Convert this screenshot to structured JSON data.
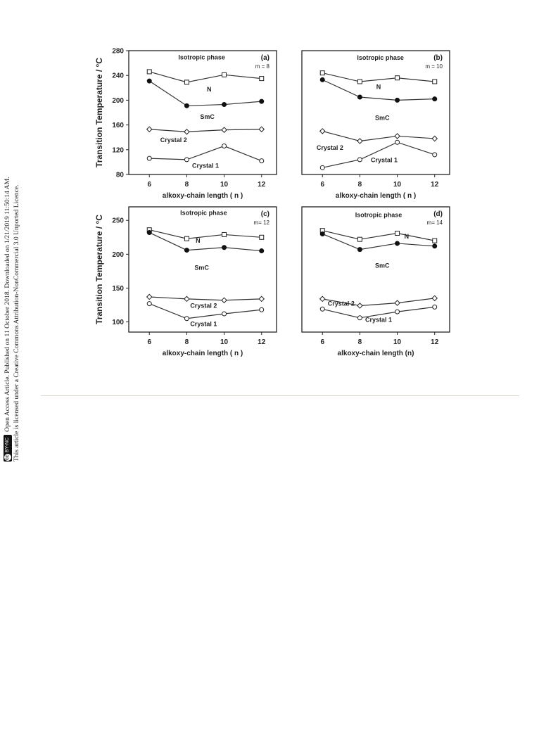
{
  "notice": {
    "line1": "Open Access Article. Published on 11 October 2018. Downloaded on 1/21/2019 11:50:14 AM.",
    "line2": "This article is licensed under a Creative Commons Attribution-NonCommercial 3.0 Unported Licence.",
    "badge_cc": "cc",
    "badge_text": "BY-NC"
  },
  "chart_data": [
    {
      "type": "line",
      "panel_label": "(a)",
      "m_label": "m = 8",
      "ylabel": "Transition Temperature / °C",
      "xlabel": "alkoxy-chain length ( n )",
      "categories": [
        "6",
        "8",
        "10",
        "12"
      ],
      "yticks": [
        "80",
        "120",
        "160",
        "200",
        "240",
        "280"
      ],
      "ylim": [
        80,
        280
      ],
      "series": [
        {
          "values": [
            246,
            229,
            241,
            235
          ],
          "marker": "square"
        },
        {
          "values": [
            231,
            191,
            193,
            198
          ],
          "marker": "filled-circle"
        },
        {
          "values": [
            153,
            149,
            152,
            153
          ],
          "marker": "diamond"
        },
        {
          "values": [
            106,
            104,
            126,
            102
          ],
          "marker": "circle"
        }
      ],
      "annotations": [
        {
          "text": "Isotropic phase",
          "x": 8.8,
          "y": 266
        },
        {
          "text": "N",
          "x": 9.2,
          "y": 214
        },
        {
          "text": "SmC",
          "x": 9.1,
          "y": 170
        },
        {
          "text": "Crystal 2",
          "x": 7.3,
          "y": 132
        },
        {
          "text": "Crystal 1",
          "x": 9.0,
          "y": 91
        }
      ]
    },
    {
      "type": "line",
      "panel_label": "(b)",
      "m_label": "m = 10",
      "ylabel": "",
      "xlabel": "alkoxy-chain length ( n )",
      "categories": [
        "6",
        "8",
        "10",
        "12"
      ],
      "yticks": [],
      "ylim": [
        80,
        280
      ],
      "series": [
        {
          "values": [
            244,
            230,
            236,
            230
          ],
          "marker": "square"
        },
        {
          "values": [
            233,
            205,
            200,
            202
          ],
          "marker": "filled-circle"
        },
        {
          "values": [
            150,
            134,
            142,
            138
          ],
          "marker": "diamond"
        },
        {
          "values": [
            91,
            104,
            132,
            112
          ],
          "marker": "circle"
        }
      ],
      "annotations": [
        {
          "text": "Isotropic phase",
          "x": 9.1,
          "y": 265
        },
        {
          "text": "N",
          "x": 9.0,
          "y": 218
        },
        {
          "text": "SmC",
          "x": 9.2,
          "y": 168
        },
        {
          "text": "Crystal 2",
          "x": 6.4,
          "y": 120
        },
        {
          "text": "Crystal 1",
          "x": 9.3,
          "y": 100
        }
      ]
    },
    {
      "type": "line",
      "panel_label": "(c)",
      "m_label": "m= 12",
      "ylabel": "Transition Temperature / °C",
      "xlabel": "alkoxy-chain length ( n )",
      "categories": [
        "6",
        "8",
        "10",
        "12"
      ],
      "yticks": [
        "100",
        "150",
        "200",
        "250"
      ],
      "ylim": [
        85,
        270
      ],
      "series": [
        {
          "values": [
            236,
            223,
            229,
            225
          ],
          "marker": "square"
        },
        {
          "values": [
            232,
            206,
            210,
            205
          ],
          "marker": "filled-circle"
        },
        {
          "values": [
            137,
            134,
            132,
            134
          ],
          "marker": "diamond"
        },
        {
          "values": [
            127,
            105,
            112,
            118
          ],
          "marker": "circle"
        }
      ],
      "annotations": [
        {
          "text": "Isotropic phase",
          "x": 8.9,
          "y": 258
        },
        {
          "text": "N",
          "x": 8.6,
          "y": 217
        },
        {
          "text": "SmC",
          "x": 8.8,
          "y": 177
        },
        {
          "text": "Crystal 2",
          "x": 8.9,
          "y": 121
        },
        {
          "text": "Crystal 1",
          "x": 8.9,
          "y": 94
        }
      ]
    },
    {
      "type": "line",
      "panel_label": "(d)",
      "m_label": "m= 14",
      "ylabel": "",
      "xlabel": "alkoxy-chain length (n)",
      "categories": [
        "6",
        "8",
        "10",
        "12"
      ],
      "yticks": [],
      "ylim": [
        85,
        270
      ],
      "series": [
        {
          "values": [
            235,
            222,
            231,
            220
          ],
          "marker": "square"
        },
        {
          "values": [
            230,
            207,
            216,
            212
          ],
          "marker": "filled-circle"
        },
        {
          "values": [
            134,
            124,
            128,
            135
          ],
          "marker": "diamond"
        },
        {
          "values": [
            119,
            106,
            115,
            122
          ],
          "marker": "circle"
        }
      ],
      "annotations": [
        {
          "text": "Isotropic phase",
          "x": 9.0,
          "y": 255
        },
        {
          "text": "N",
          "x": 10.5,
          "y": 223
        },
        {
          "text": "SmC",
          "x": 9.2,
          "y": 180
        },
        {
          "text": "Crystal 2",
          "x": 7.0,
          "y": 124
        },
        {
          "text": "Crystal 1",
          "x": 9.0,
          "y": 100
        }
      ]
    }
  ]
}
